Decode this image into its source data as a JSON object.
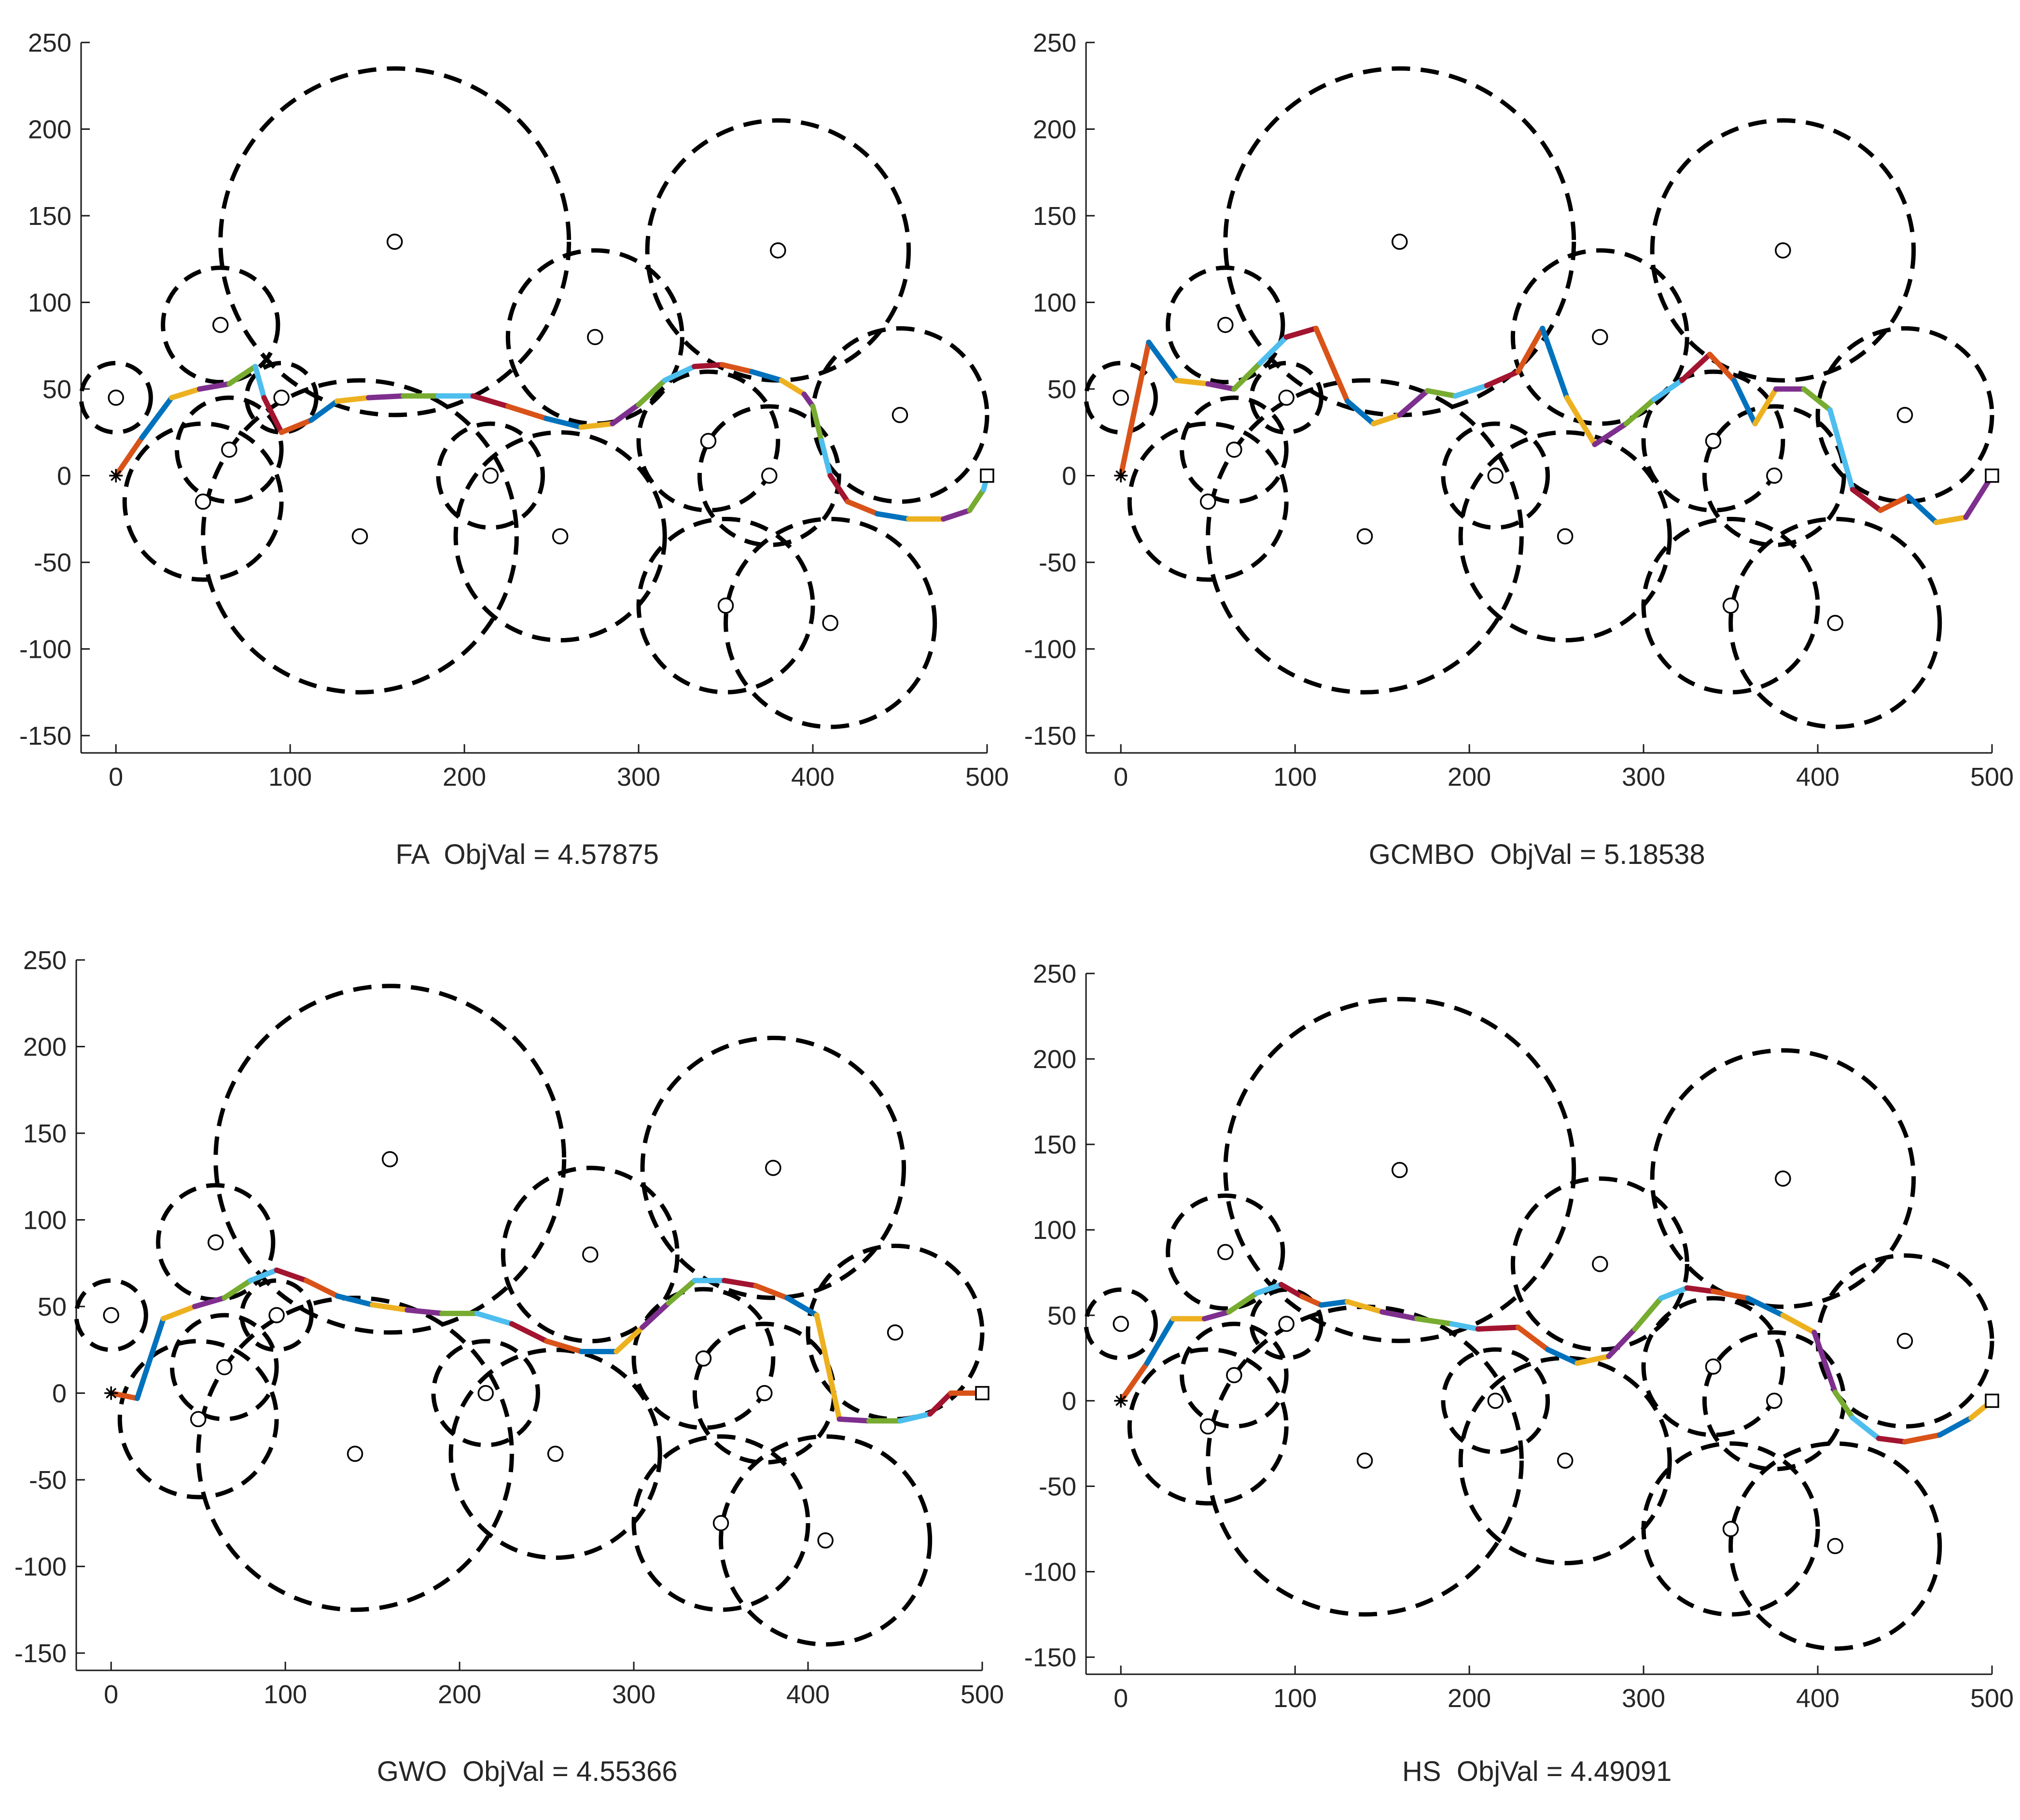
{
  "chart_data": {
    "type": "path-planning-plot",
    "colors": [
      "#d95319",
      "#0072bd",
      "#edb120",
      "#7e2f8e",
      "#77ac30",
      "#4dbeee",
      "#a2142f"
    ],
    "start_marker": "*",
    "end_marker": "square",
    "obstacles": [
      {
        "x": 0,
        "y": 45,
        "r": 20
      },
      {
        "x": 60,
        "y": 87,
        "r": 33
      },
      {
        "x": 65,
        "y": 15,
        "r": 30
      },
      {
        "x": 50,
        "y": -15,
        "r": 45
      },
      {
        "x": 95,
        "y": 45,
        "r": 20
      },
      {
        "x": 160,
        "y": 135,
        "r": 100
      },
      {
        "x": 140,
        "y": -35,
        "r": 90
      },
      {
        "x": 215,
        "y": 0,
        "r": 30
      },
      {
        "x": 255,
        "y": -35,
        "r": 60
      },
      {
        "x": 275,
        "y": 80,
        "r": 50
      },
      {
        "x": 340,
        "y": 20,
        "r": 40
      },
      {
        "x": 375,
        "y": 0,
        "r": 40
      },
      {
        "x": 380,
        "y": 130,
        "r": 75
      },
      {
        "x": 450,
        "y": 35,
        "r": 50
      },
      {
        "x": 350,
        "y": -75,
        "r": 50
      },
      {
        "x": 410,
        "y": -85,
        "r": 60
      }
    ],
    "panels": [
      {
        "algorithm": "FA",
        "objval_label": "ObjVal",
        "objval": "4.57875",
        "xlim": [
          -20,
          500
        ],
        "ylim": [
          -160,
          250
        ],
        "xticks": [
          "0",
          "100",
          "200",
          "300",
          "400",
          "500"
        ],
        "yticks": [
          "250",
          "200",
          "150",
          "100",
          "50",
          "0",
          "-50",
          "-100",
          "-150"
        ],
        "path": [
          [
            0,
            0
          ],
          [
            15,
            22
          ],
          [
            32,
            45
          ],
          [
            48,
            50
          ],
          [
            65,
            53
          ],
          [
            80,
            63
          ],
          [
            85,
            45
          ],
          [
            95,
            25
          ],
          [
            112,
            32
          ],
          [
            127,
            43
          ],
          [
            145,
            45
          ],
          [
            165,
            46
          ],
          [
            185,
            46
          ],
          [
            205,
            46
          ],
          [
            225,
            40
          ],
          [
            247,
            33
          ],
          [
            267,
            28
          ],
          [
            285,
            30
          ],
          [
            300,
            41
          ],
          [
            315,
            55
          ],
          [
            332,
            63
          ],
          [
            348,
            64
          ],
          [
            365,
            60
          ],
          [
            382,
            55
          ],
          [
            395,
            47
          ],
          [
            400,
            40
          ],
          [
            405,
            20
          ],
          [
            410,
            0
          ],
          [
            420,
            -15
          ],
          [
            437,
            -22
          ],
          [
            455,
            -25
          ],
          [
            475,
            -25
          ],
          [
            490,
            -20
          ],
          [
            498,
            -8
          ],
          [
            500,
            0
          ]
        ]
      },
      {
        "algorithm": "GCMBO",
        "objval_label": "ObjVal",
        "objval": "5.18538",
        "xlim": [
          -20,
          500
        ],
        "ylim": [
          -160,
          250
        ],
        "xticks": [
          "0",
          "100",
          "200",
          "300",
          "400",
          "500"
        ],
        "yticks": [
          "250",
          "200",
          "150",
          "100",
          "50",
          "0",
          "-50",
          "-100",
          "-150"
        ],
        "path": [
          [
            0,
            0
          ],
          [
            16,
            77
          ],
          [
            32,
            55
          ],
          [
            50,
            53
          ],
          [
            65,
            50
          ],
          [
            80,
            65
          ],
          [
            95,
            80
          ],
          [
            112,
            85
          ],
          [
            130,
            43
          ],
          [
            145,
            30
          ],
          [
            160,
            35
          ],
          [
            176,
            49
          ],
          [
            192,
            46
          ],
          [
            210,
            52
          ],
          [
            228,
            60
          ],
          [
            242,
            85
          ],
          [
            256,
            45
          ],
          [
            272,
            18
          ],
          [
            290,
            30
          ],
          [
            306,
            44
          ],
          [
            322,
            55
          ],
          [
            338,
            70
          ],
          [
            352,
            55
          ],
          [
            364,
            30
          ],
          [
            376,
            50
          ],
          [
            392,
            50
          ],
          [
            407,
            38
          ],
          [
            420,
            -8
          ],
          [
            436,
            -20
          ],
          [
            452,
            -12
          ],
          [
            468,
            -27
          ],
          [
            485,
            -24
          ],
          [
            500,
            0
          ]
        ]
      },
      {
        "algorithm": "GWO",
        "objval_label": "ObjVal",
        "objval": "4.55366",
        "xlim": [
          -20,
          500
        ],
        "ylim": [
          -160,
          250
        ],
        "xticks": [
          "0",
          "100",
          "200",
          "300",
          "400",
          "500"
        ],
        "yticks": [
          "250",
          "200",
          "150",
          "100",
          "50",
          "0",
          "-50",
          "-100",
          "-150"
        ],
        "path": [
          [
            0,
            0
          ],
          [
            15,
            -3
          ],
          [
            30,
            43
          ],
          [
            48,
            50
          ],
          [
            65,
            55
          ],
          [
            80,
            65
          ],
          [
            95,
            71
          ],
          [
            112,
            65
          ],
          [
            130,
            56
          ],
          [
            150,
            51
          ],
          [
            170,
            48
          ],
          [
            190,
            46
          ],
          [
            210,
            46
          ],
          [
            230,
            40
          ],
          [
            250,
            30
          ],
          [
            270,
            24
          ],
          [
            290,
            24
          ],
          [
            305,
            38
          ],
          [
            320,
            52
          ],
          [
            335,
            65
          ],
          [
            352,
            65
          ],
          [
            370,
            62
          ],
          [
            388,
            55
          ],
          [
            405,
            45
          ],
          [
            418,
            -15
          ],
          [
            435,
            -16
          ],
          [
            453,
            -16
          ],
          [
            470,
            -12
          ],
          [
            482,
            0
          ],
          [
            500,
            0
          ]
        ]
      },
      {
        "algorithm": "HS",
        "objval_label": "ObjVal",
        "objval": "4.49091",
        "xlim": [
          -20,
          500
        ],
        "ylim": [
          -160,
          250
        ],
        "xticks": [
          "0",
          "100",
          "200",
          "300",
          "400",
          "500"
        ],
        "yticks": [
          "250",
          "200",
          "150",
          "100",
          "50",
          "0",
          "-50",
          "-100",
          "-150"
        ],
        "path": [
          [
            0,
            0
          ],
          [
            15,
            22
          ],
          [
            30,
            48
          ],
          [
            48,
            48
          ],
          [
            62,
            52
          ],
          [
            78,
            63
          ],
          [
            92,
            68
          ],
          [
            104,
            61
          ],
          [
            115,
            56
          ],
          [
            130,
            58
          ],
          [
            150,
            52
          ],
          [
            170,
            48
          ],
          [
            190,
            45
          ],
          [
            205,
            42
          ],
          [
            228,
            43
          ],
          [
            245,
            30
          ],
          [
            262,
            22
          ],
          [
            280,
            26
          ],
          [
            295,
            42
          ],
          [
            310,
            60
          ],
          [
            325,
            66
          ],
          [
            340,
            64
          ],
          [
            360,
            60
          ],
          [
            380,
            50
          ],
          [
            398,
            40
          ],
          [
            410,
            5
          ],
          [
            420,
            -10
          ],
          [
            435,
            -22
          ],
          [
            450,
            -24
          ],
          [
            470,
            -20
          ],
          [
            488,
            -10
          ],
          [
            500,
            0
          ]
        ]
      }
    ]
  }
}
